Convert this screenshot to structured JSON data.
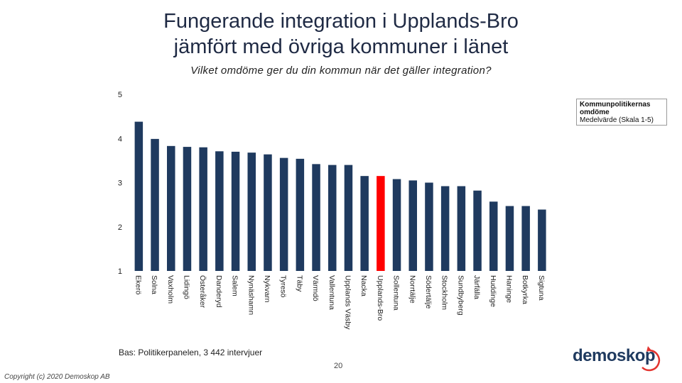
{
  "slide": {
    "title_line1": "Fungerande integration i Upplands-Bro",
    "title_line2": "jämfört med övriga kommuner i länet",
    "subtitle": "Vilket omdöme ger du din kommun när det gäller integration?",
    "base_note": "Bas: Politikerpanelen, 3 442 intervjuer",
    "page_number": "20",
    "copyright": "Copyright (c) 2020 Demoskop AB",
    "logo_text": "demoskop"
  },
  "legend": {
    "title": "Kommunpolitikernas omdöme",
    "subtitle": "Medelvärde (Skala 1-5)"
  },
  "colors": {
    "bar": "#1f3a5f",
    "highlight": "#ff0000",
    "logo_accent": "#e3342f"
  },
  "chart_data": {
    "type": "bar",
    "title": "Fungerande integration i Upplands-Bro jämfört med övriga kommuner i länet",
    "ylabel": "",
    "xlabel": "",
    "ylim": [
      1,
      5
    ],
    "yticks": [
      1,
      2,
      3,
      4,
      5
    ],
    "grid": false,
    "legend_position": "top-right",
    "highlight_category": "Upplands-Bro",
    "categories": [
      "Ekerö",
      "Solna",
      "Vaxholm",
      "Lidingö",
      "Österåker",
      "Danderyd",
      "Salem",
      "Nynäshamn",
      "Nykvarn",
      "Tyresö",
      "Täby",
      "Värmdö",
      "Vallentuna",
      "Upplands Väsby",
      "Nacka",
      "Upplands-Bro",
      "Sollentuna",
      "Norrtälje",
      "Södertälje",
      "Stockholm",
      "Sundbyberg",
      "Järfälla",
      "Huddinge",
      "Haninge",
      "Botkyrka",
      "Sigtuna"
    ],
    "series": [
      {
        "name": "Kommunpolitikernas omdöme",
        "values": [
          4.38,
          3.99,
          3.83,
          3.81,
          3.8,
          3.71,
          3.7,
          3.68,
          3.64,
          3.56,
          3.54,
          3.42,
          3.4,
          3.4,
          3.15,
          3.15,
          3.08,
          3.05,
          3.0,
          2.92,
          2.92,
          2.82,
          2.57,
          2.47,
          2.47,
          2.39
        ]
      }
    ]
  }
}
